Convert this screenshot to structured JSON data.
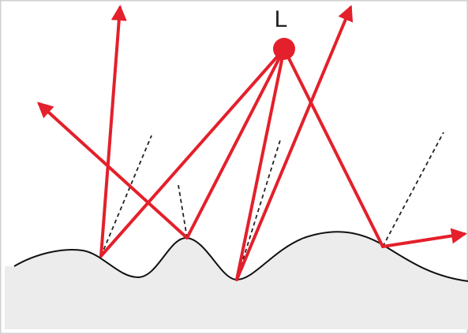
{
  "light": {
    "label": "L"
  }
}
